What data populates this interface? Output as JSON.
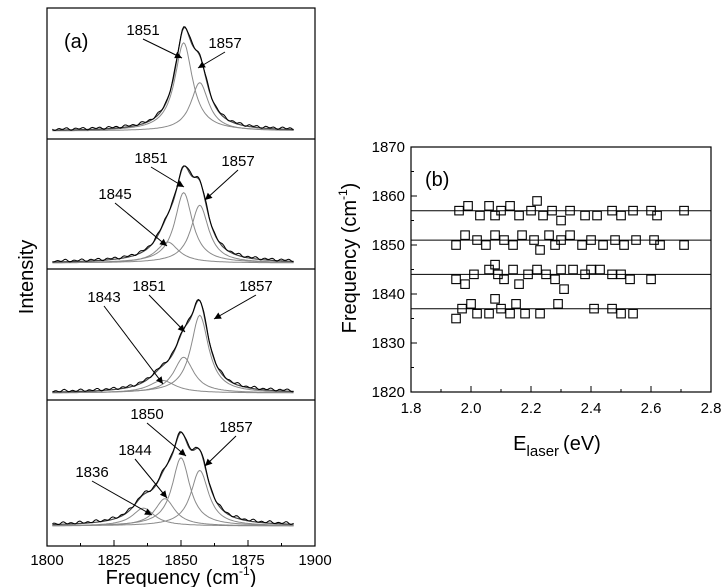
{
  "chart_data": [
    {
      "panel": "(a)",
      "type": "line",
      "xlabel": "Frequency (cm",
      "xlabel_sup": "-1",
      "xlabel_close": ")",
      "ylabel": "Intensity",
      "xlim": [
        1800,
        1900
      ],
      "xticks": [
        "1800",
        "1825",
        "1850",
        "1875",
        "1900"
      ],
      "spectra": [
        {
          "peaks": [
            {
              "label": "1851",
              "center": 1851,
              "amp": 0.84,
              "width": 4.0
            },
            {
              "label": "1857",
              "center": 1857,
              "amp": 0.46,
              "width": 4.0
            }
          ]
        },
        {
          "peaks": [
            {
              "label": "1845",
              "center": 1845,
              "amp": 0.2,
              "width": 5.0
            },
            {
              "label": "1851",
              "center": 1851,
              "amp": 0.67,
              "width": 4.0
            },
            {
              "label": "1857",
              "center": 1857,
              "amp": 0.55,
              "width": 4.0
            }
          ]
        },
        {
          "peaks": [
            {
              "label": "1843",
              "center": 1843,
              "amp": 0.12,
              "width": 6.0
            },
            {
              "label": "1851",
              "center": 1851,
              "amp": 0.34,
              "width": 4.5
            },
            {
              "label": "1857",
              "center": 1857,
              "amp": 0.74,
              "width": 4.0
            }
          ]
        },
        {
          "peaks": [
            {
              "label": "1836",
              "center": 1836,
              "amp": 0.17,
              "width": 5.0
            },
            {
              "label": "1844",
              "center": 1844,
              "amp": 0.26,
              "width": 4.5
            },
            {
              "label": "1850",
              "center": 1850,
              "amp": 0.65,
              "width": 4.0
            },
            {
              "label": "1857",
              "center": 1857,
              "amp": 0.53,
              "width": 4.0
            }
          ]
        }
      ]
    },
    {
      "panel": "(b)",
      "type": "scatter",
      "xlabel_main": "E",
      "xlabel_sub": "laser",
      "xlabel_tail": "(eV)",
      "ylabel_main": "Frequency (cm",
      "ylabel_sup": "-1",
      "ylabel_close": ")",
      "xlim": [
        1.8,
        2.8
      ],
      "ylim": [
        1820,
        1870
      ],
      "xticks": [
        "1.8",
        "2.0",
        "2.2",
        "2.4",
        "2.6",
        "2.8"
      ],
      "yticks": [
        "1820",
        "1830",
        "1840",
        "1850",
        "1860",
        "1870"
      ],
      "hlines": [
        1857,
        1851,
        1844,
        1837
      ],
      "series": [
        {
          "level": 1857,
          "x": [
            1.96,
            1.99,
            2.03,
            2.06,
            2.08,
            2.1,
            2.13,
            2.16,
            2.2,
            2.22,
            2.24,
            2.27,
            2.3,
            2.33,
            2.38,
            2.42,
            2.47,
            2.5,
            2.54,
            2.6,
            2.62,
            2.71
          ],
          "y": [
            1857,
            1858,
            1856,
            1858,
            1856,
            1857,
            1858,
            1856,
            1857,
            1859,
            1856,
            1857,
            1855,
            1857,
            1856,
            1856,
            1857,
            1856,
            1857,
            1857,
            1856,
            1857
          ]
        },
        {
          "level": 1851,
          "x": [
            1.95,
            1.98,
            2.02,
            2.05,
            2.08,
            2.11,
            2.14,
            2.17,
            2.21,
            2.23,
            2.26,
            2.28,
            2.3,
            2.33,
            2.37,
            2.4,
            2.44,
            2.48,
            2.51,
            2.55,
            2.61,
            2.63,
            2.71
          ],
          "y": [
            1850,
            1852,
            1851,
            1850,
            1852,
            1851,
            1850,
            1852,
            1851,
            1849,
            1852,
            1850,
            1851,
            1852,
            1850,
            1851,
            1850,
            1851,
            1850,
            1851,
            1851,
            1850,
            1850
          ]
        },
        {
          "level": 1844,
          "x": [
            1.95,
            1.98,
            2.01,
            2.06,
            2.08,
            2.09,
            2.11,
            2.14,
            2.16,
            2.19,
            2.22,
            2.25,
            2.28,
            2.3,
            2.31,
            2.34,
            2.38,
            2.4,
            2.43,
            2.47,
            2.5,
            2.53,
            2.6
          ],
          "y": [
            1843,
            1842,
            1844,
            1845,
            1846,
            1844,
            1843,
            1845,
            1842,
            1844,
            1845,
            1844,
            1843,
            1845,
            1841,
            1845,
            1844,
            1845,
            1845,
            1844,
            1844,
            1843,
            1843
          ]
        },
        {
          "level": 1837,
          "x": [
            1.95,
            1.97,
            2.0,
            2.02,
            2.06,
            2.08,
            2.1,
            2.13,
            2.15,
            2.18,
            2.23,
            2.29,
            2.41,
            2.47,
            2.5,
            2.54
          ],
          "y": [
            1835,
            1837,
            1838,
            1836,
            1836,
            1839,
            1837,
            1836,
            1838,
            1836,
            1836,
            1838,
            1837,
            1837,
            1836,
            1836
          ]
        }
      ]
    }
  ]
}
